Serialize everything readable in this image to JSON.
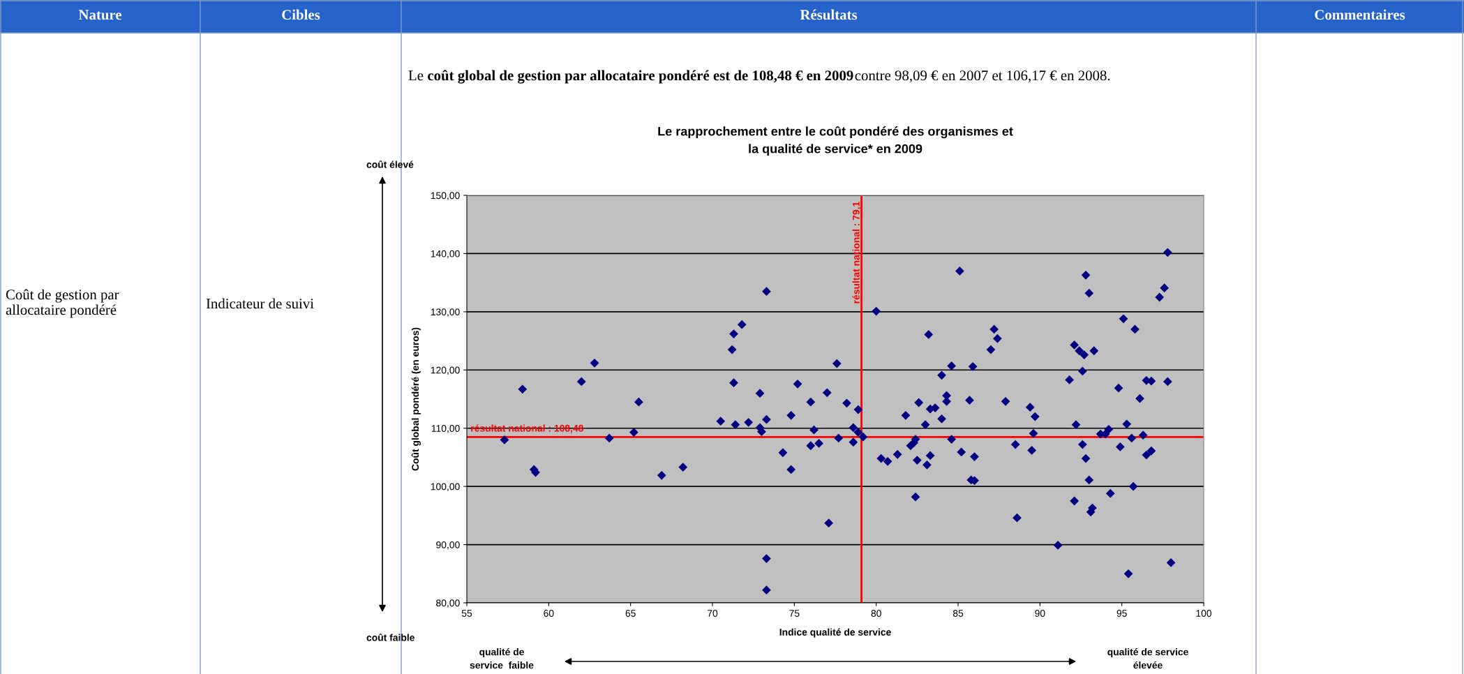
{
  "chart_data": {
    "type": "scatter",
    "title": "Le rapprochement entre le coût pondéré des organismes et\nla qualité de service* en 2009",
    "xlabel": "Indice qualité de service",
    "ylabel": "Coût global pondéré (en euros)",
    "xlim": [
      55,
      100
    ],
    "xticks": [
      55,
      60,
      65,
      70,
      75,
      80,
      85,
      90,
      95,
      100
    ],
    "ylim": [
      80,
      150
    ],
    "yticks": [
      {
        "value": 80,
        "label": "80,00"
      },
      {
        "value": 90,
        "label": "90,00"
      },
      {
        "value": 100,
        "label": "100,00"
      },
      {
        "value": 110,
        "label": "110,00"
      },
      {
        "value": 120,
        "label": "120,00"
      },
      {
        "value": 130,
        "label": "130,00"
      },
      {
        "value": 140,
        "label": "140,00"
      },
      {
        "value": 150,
        "label": "150,00"
      }
    ],
    "grid": "y",
    "marker": "diamond",
    "series": [
      {
        "color": "#000080",
        "x": [
          57.3,
          58.4,
          59.1,
          59.2,
          62,
          62.8,
          63.7,
          65.2,
          65.5,
          66.9,
          68.2,
          70.5,
          71.2,
          71.3,
          71.3,
          71.4,
          71.8,
          72.2,
          72.9,
          72.9,
          73,
          73.3,
          73.3,
          73.3,
          73.3,
          74.3,
          74.8,
          74.8,
          75.2,
          76,
          76,
          76.2,
          76.5,
          77,
          77.1,
          77.6,
          77.7,
          78.2,
          78.6,
          78.6,
          78.9,
          78.9,
          79.2,
          80,
          80.3,
          80.7,
          81.3,
          81.8,
          82.1,
          82.3,
          82.4,
          82.4,
          82.5,
          82.6,
          83,
          83.1,
          83.2,
          83.3,
          83.3,
          83.6,
          84,
          84,
          84.3,
          84.3,
          84.6,
          84.6,
          85.1,
          85.2,
          85.7,
          85.8,
          85.9,
          86,
          86,
          87,
          87.2,
          87.4,
          87.9,
          88.5,
          88.6,
          89.4,
          89.5,
          89.6,
          89.7,
          91.1,
          91.8,
          92.1,
          92.2,
          92.1,
          92.4,
          92.6,
          92.7,
          92.6,
          92.8,
          92.8,
          93,
          93,
          93.1,
          93.2,
          93.3,
          93.7,
          94,
          94.2,
          94.3,
          94.9,
          94.8,
          95.1,
          95.3,
          95.4,
          95.6,
          95.8,
          95.7,
          96.1,
          96.3,
          96.5,
          96.5,
          96.8,
          96.8,
          97.3,
          97.6,
          97.8,
          97.8,
          98
        ],
        "values": [
          108,
          116.7,
          102.9,
          102.4,
          118,
          121.2,
          108.3,
          109.3,
          114.5,
          101.9,
          103.3,
          111.2,
          123.5,
          126.2,
          117.8,
          110.6,
          127.8,
          111,
          116,
          110.1,
          109.4,
          111.5,
          133.5,
          87.6,
          82.2,
          105.8,
          112.2,
          102.9,
          117.6,
          114.5,
          107,
          109.7,
          107.4,
          116.1,
          93.7,
          121.1,
          108.3,
          114.3,
          107.6,
          110.1,
          113.2,
          109.3,
          108.5,
          130.1,
          104.8,
          104.3,
          105.5,
          112.2,
          107,
          107.5,
          108.1,
          98.2,
          104.5,
          114.4,
          110.6,
          103.7,
          126.1,
          113.3,
          105.3,
          113.5,
          119.1,
          111.6,
          115.6,
          114.6,
          120.7,
          108.1,
          137,
          105.9,
          114.8,
          101.1,
          120.6,
          101,
          105.1,
          123.5,
          127,
          125.4,
          114.6,
          107.2,
          94.6,
          113.6,
          106.2,
          109.1,
          112,
          89.9,
          118.3,
          124.3,
          110.6,
          97.5,
          123.3,
          107.2,
          122.6,
          119.8,
          104.8,
          136.3,
          133.2,
          101.1,
          95.6,
          96.3,
          123.3,
          109,
          109,
          109.8,
          98.8,
          106.8,
          116.9,
          128.8,
          110.7,
          85,
          108.3,
          127,
          100,
          115.1,
          108.8,
          118.2,
          105.4,
          118.1,
          106.1,
          132.5,
          134.1,
          118,
          140.2,
          86.9
        ]
      }
    ],
    "ref_lines": [
      {
        "axis": "x",
        "value": 79.1,
        "label": "résultat national : 79,1",
        "color": "#ff0000"
      },
      {
        "axis": "y",
        "value": 108.48,
        "label": "résultat national : 108,48",
        "color": "#ff0000"
      }
    ],
    "annotations": [
      "Nature",
      "Cibles",
      "Résultats",
      "Commentaires",
      "Coût de gestion par\nallocataire pondéré",
      "Indicateur de suivi",
      "Le ",
      "coût global de gestion par allocataire pondéré est de 108,48 € en 2009",
      "contre 98,09 € en 2007 et 106,17 € en 2008.",
      "coût élevé",
      "coût faible",
      "qualité de\nservice  faible",
      "qualité de service\nélevée"
    ]
  }
}
